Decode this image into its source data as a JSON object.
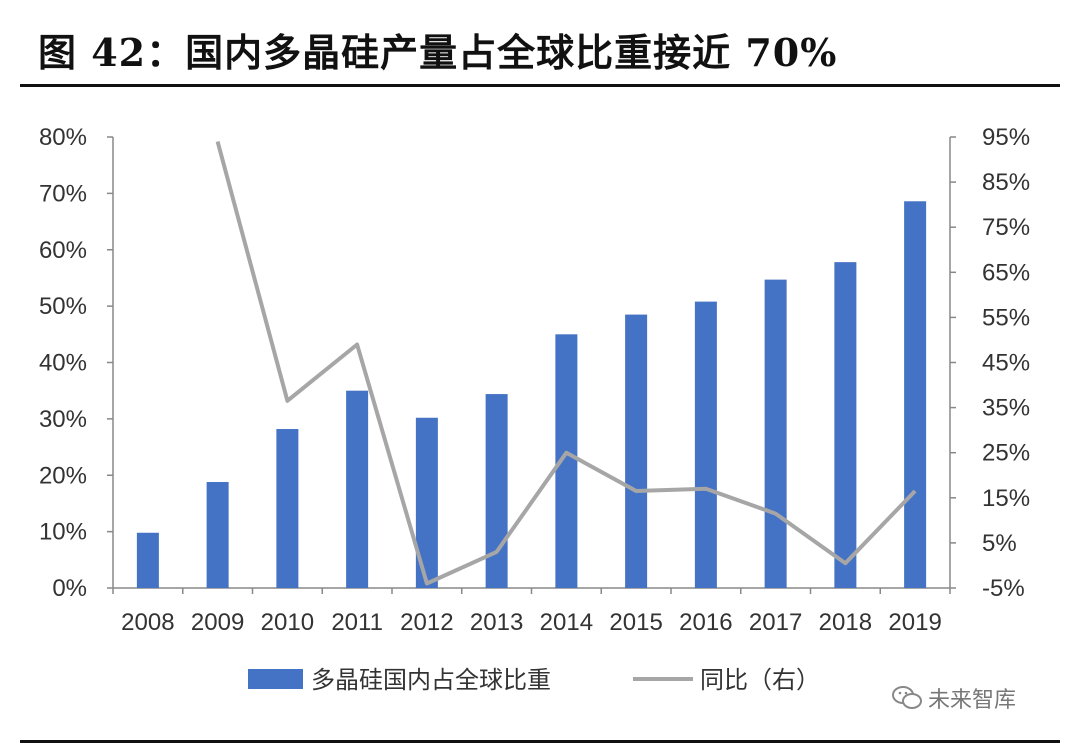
{
  "title": "图 42：国内多晶硅产量占全球比重接近 70%",
  "watermark": "未来智库",
  "chart_data": {
    "type": "bar",
    "categories": [
      "2008",
      "2009",
      "2010",
      "2011",
      "2012",
      "2013",
      "2014",
      "2015",
      "2016",
      "2017",
      "2018",
      "2019"
    ],
    "series": [
      {
        "name": "多晶硅国内占全球比重",
        "type": "bar",
        "axis": "left",
        "color": "#4472C4",
        "values": [
          9.8,
          18.8,
          28.2,
          35.0,
          30.2,
          34.4,
          45.0,
          48.5,
          50.8,
          54.7,
          57.8,
          68.6
        ]
      },
      {
        "name": "同比（右）",
        "type": "line",
        "axis": "right",
        "color": "#A6A6A6",
        "values": [
          null,
          94,
          36.5,
          49,
          -4,
          3,
          25,
          16.5,
          17,
          11.5,
          0.5,
          16.5
        ]
      }
    ],
    "left_axis": {
      "min": 0,
      "max": 80,
      "step": 10,
      "tick_labels": [
        "0%",
        "10%",
        "20%",
        "30%",
        "40%",
        "50%",
        "60%",
        "70%",
        "80%"
      ]
    },
    "right_axis": {
      "min": -5,
      "max": 95,
      "step": 10,
      "tick_labels": [
        "-5%",
        "5%",
        "15%",
        "25%",
        "35%",
        "45%",
        "55%",
        "65%",
        "75%",
        "85%",
        "95%"
      ]
    },
    "grid": false,
    "legend_position": "bottom"
  }
}
